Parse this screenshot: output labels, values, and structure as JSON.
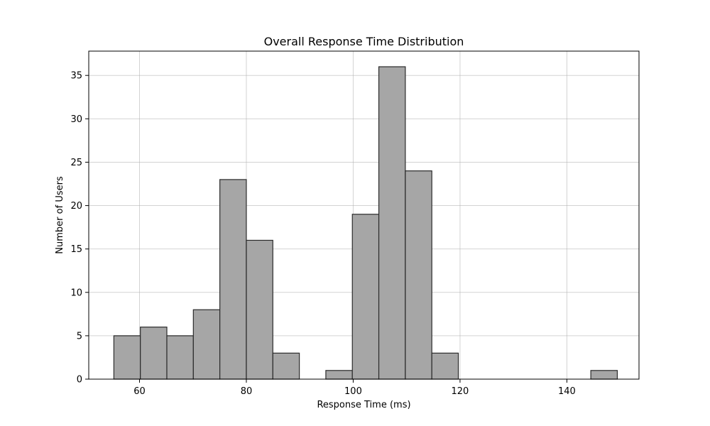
{
  "chart_data": {
    "type": "bar",
    "title": "Overall Response Time Distribution",
    "xlabel": "Response Time (ms)",
    "ylabel": "Number of Users",
    "bin_edges": [
      55.2,
      60.16,
      65.12,
      70.08,
      75.04,
      80.0,
      84.96,
      89.92,
      94.88,
      99.84,
      104.8,
      109.76,
      114.72,
      119.68,
      124.64,
      129.6,
      134.56,
      139.52,
      144.48,
      149.44
    ],
    "values": [
      5,
      6,
      5,
      8,
      23,
      16,
      3,
      0,
      1,
      19,
      36,
      24,
      3,
      0,
      0,
      0,
      0,
      0,
      1
    ],
    "xlim": [
      50.5,
      153.5
    ],
    "ylim": [
      0,
      37.8
    ],
    "xticks": [
      60,
      80,
      100,
      120,
      140
    ],
    "yticks": [
      0,
      5,
      10,
      15,
      20,
      25,
      30,
      35
    ],
    "grid": true,
    "bar_color": "#a6a6a6",
    "edge_color": "#2b2b2b"
  }
}
